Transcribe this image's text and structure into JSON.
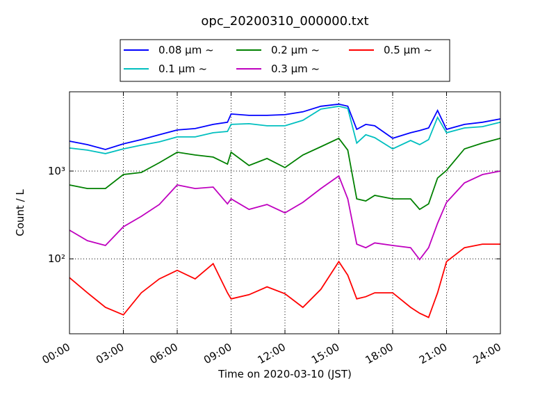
{
  "chart_data": {
    "type": "line",
    "title": "opc_20200310_000000.txt",
    "x_label": "Time on 2020-03-10 (JST)",
    "y_label": "Count / L",
    "x": [
      0,
      1,
      2,
      3,
      4,
      5,
      6,
      7,
      8,
      8.8,
      9,
      10,
      11,
      12,
      13,
      14,
      15,
      15.5,
      16,
      16.5,
      17,
      18,
      19,
      19.5,
      20,
      20.5,
      21,
      22,
      23,
      24
    ],
    "xlim": [
      0,
      24
    ],
    "xticks": [
      {
        "value": 0,
        "label": "00:00"
      },
      {
        "value": 3,
        "label": "03:00"
      },
      {
        "value": 6,
        "label": "06:00"
      },
      {
        "value": 9,
        "label": "09:00"
      },
      {
        "value": 12,
        "label": "12:00"
      },
      {
        "value": 15,
        "label": "15:00"
      },
      {
        "value": 18,
        "label": "18:00"
      },
      {
        "value": 21,
        "label": "21:00"
      },
      {
        "value": 24,
        "label": "24:00"
      }
    ],
    "ylim": [
      14,
      8000
    ],
    "yticks": [
      {
        "value": 100,
        "label": "10²"
      },
      {
        "value": 1000,
        "label": "10³"
      }
    ],
    "log_y": true,
    "grid": true,
    "legend": "upper center",
    "series": [
      {
        "name": "0.08 μm ~",
        "color": "#0000ff",
        "values": [
          2190,
          2000,
          1760,
          2040,
          2280,
          2590,
          2940,
          3050,
          3400,
          3600,
          4470,
          4310,
          4310,
          4390,
          4730,
          5470,
          5780,
          5470,
          2990,
          3400,
          3280,
          2360,
          2730,
          2890,
          3100,
          4900,
          2990,
          3400,
          3600,
          3930
        ]
      },
      {
        "name": "0.1 μm ~",
        "color": "#00bfbf",
        "values": [
          1830,
          1730,
          1580,
          1790,
          1970,
          2150,
          2450,
          2450,
          2730,
          2830,
          3400,
          3460,
          3280,
          3280,
          3790,
          5090,
          5470,
          5170,
          2080,
          2590,
          2400,
          1790,
          2230,
          2000,
          2280,
          4090,
          2730,
          3100,
          3210,
          3600
        ]
      },
      {
        "name": "0.2 μm ~",
        "color": "#008000",
        "values": [
          694,
          633,
          633,
          913,
          964,
          1245,
          1638,
          1523,
          1442,
          1200,
          1638,
          1157,
          1390,
          1096,
          1523,
          1895,
          2360,
          1730,
          482,
          456,
          528,
          482,
          482,
          366,
          423,
          833,
          1018,
          1790,
          2080,
          2360
        ]
      },
      {
        "name": "0.3 μm ~",
        "color": "#bf00bf",
        "values": [
          212,
          161,
          142,
          232,
          305,
          416,
          694,
          633,
          657,
          423,
          482,
          366,
          416,
          334,
          440,
          633,
          880,
          482,
          147,
          134,
          152,
          142,
          134,
          98,
          134,
          254,
          440,
          733,
          913,
          1000
        ]
      },
      {
        "name": "0.5 μm ~",
        "color": "#ff0000",
        "values": [
          61,
          41,
          28,
          23,
          41,
          59,
          74,
          59,
          88,
          41,
          35,
          39,
          48,
          40,
          28,
          45,
          93,
          65,
          35,
          37,
          41,
          41,
          28,
          24,
          21.5,
          41,
          93,
          134,
          147,
          147
        ]
      }
    ]
  }
}
